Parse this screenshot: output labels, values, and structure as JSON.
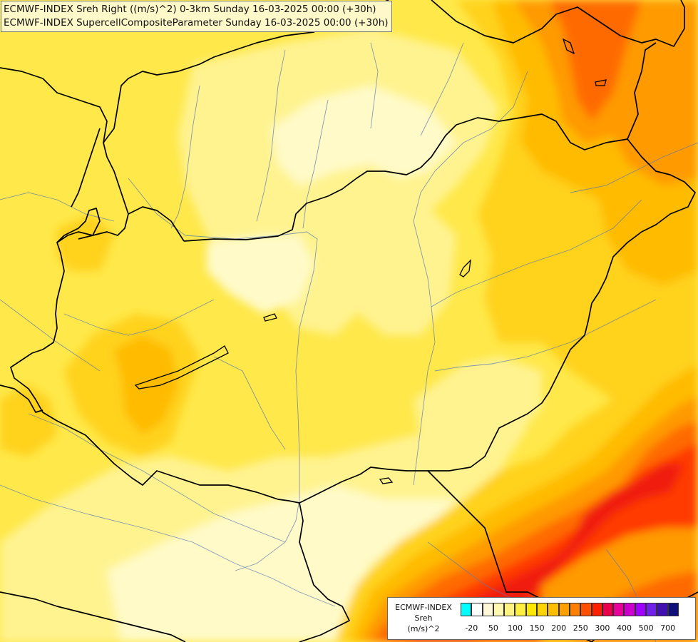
{
  "title": {
    "line1": "ECMWF-INDEX Sreh Right ((m/s)^2) 0-3km Sunday 16-03-2025 00:00 (+30h)",
    "line2": "ECMWF-INDEX SupercellCompositeParameter Sunday 16-03-2025 00:00 (+30h)"
  },
  "legend": {
    "product": "ECMWF-INDEX",
    "variable": "Sreh",
    "unit": "(m/s)^2",
    "colors": [
      "#00ffff",
      "#ffffff",
      "#fff8d8",
      "#fff8b0",
      "#fff380",
      "#ffef40",
      "#ffe800",
      "#ffd400",
      "#ffbd00",
      "#ffa000",
      "#ff8000",
      "#ff5000",
      "#ff2000",
      "#e8004a",
      "#e8009a",
      "#cc00cc",
      "#a000ff",
      "#7020e8",
      "#4010b0",
      "#10107a"
    ],
    "tick_labels": [
      "-20",
      "50",
      "100",
      "150",
      "200",
      "250",
      "300",
      "400",
      "500",
      "700"
    ]
  },
  "palette": {
    "pale": "#fffac8",
    "light": "#fff390",
    "yellow": "#ffe84a",
    "gold": "#ffd21a",
    "amber": "#ffbb00",
    "orange": "#ff9a00",
    "dark_orange": "#ff6a00",
    "red_orange": "#ff3a00",
    "red": "#f01a10"
  }
}
